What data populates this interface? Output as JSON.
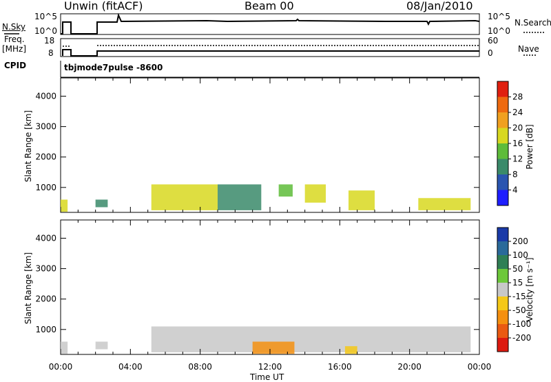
{
  "header": {
    "station": "Unwin (fitACF)",
    "beam": "Beam 00",
    "date": "08/Jan/2010"
  },
  "top_panels": {
    "nsky_label": "N.Sky",
    "nsky_ticks": [
      "10^5",
      "10^0"
    ],
    "nsearch_label": "N.Search",
    "nsearch_ticks": [
      "10^5",
      "10^0"
    ],
    "freq_label": "Freq.",
    "freq_unit": "[MHz]",
    "freq_ticks": [
      "18",
      "8"
    ],
    "nave_label": "Nave",
    "nave_ticks": [
      "60",
      "0"
    ],
    "cpid_label": "CPID",
    "cpid_value": "tbjmode7pulse  -8600"
  },
  "x_axis": {
    "label": "Time UT",
    "ticks": [
      "00:00",
      "04:00",
      "08:00",
      "12:00",
      "16:00",
      "20:00",
      "00:00"
    ]
  },
  "chart_data": [
    {
      "type": "heatmap",
      "title": "",
      "ylabel": "Slant Range [km]",
      "xlabel": "Time UT",
      "xlim_hours": [
        0,
        24
      ],
      "ylim": [
        180,
        4600
      ],
      "y_ticks": [
        1000,
        2000,
        3000,
        4000
      ],
      "colorbar": {
        "label": "Power [dB]",
        "ticks": [
          "4",
          "8",
          "12",
          "16",
          "20",
          "24",
          "28"
        ],
        "colors": [
          "#1e1eff",
          "#2a55b0",
          "#3a8a6a",
          "#5ebc3a",
          "#d8d820",
          "#f0a020",
          "#ee6a10",
          "#e02010"
        ]
      },
      "echo_regions": [
        {
          "t_start": 0.0,
          "t_end": 0.4,
          "range_low": 200,
          "range_high": 600,
          "level": "20"
        },
        {
          "t_start": 2.0,
          "t_end": 2.7,
          "range_low": 350,
          "range_high": 600,
          "level": "12"
        },
        {
          "t_start": 5.2,
          "t_end": 9.0,
          "range_low": 250,
          "range_high": 1100,
          "level": "20"
        },
        {
          "t_start": 9.0,
          "t_end": 11.5,
          "range_low": 250,
          "range_high": 1100,
          "level": "12"
        },
        {
          "t_start": 12.5,
          "t_end": 13.3,
          "range_low": 700,
          "range_high": 1100,
          "level": "16"
        },
        {
          "t_start": 14.0,
          "t_end": 15.2,
          "range_low": 500,
          "range_high": 1100,
          "level": "20"
        },
        {
          "t_start": 16.5,
          "t_end": 18.0,
          "range_low": 250,
          "range_high": 900,
          "level": "20"
        },
        {
          "t_start": 20.5,
          "t_end": 23.5,
          "range_low": 250,
          "range_high": 650,
          "level": "20"
        }
      ]
    },
    {
      "type": "heatmap",
      "title": "",
      "ylabel": "Slant Range [km]",
      "xlabel": "Time UT",
      "xlim_hours": [
        0,
        24
      ],
      "ylim": [
        180,
        4600
      ],
      "y_ticks": [
        1000,
        2000,
        3000,
        4000
      ],
      "colorbar": {
        "label": "Velocity [m s⁻¹]",
        "ticks": [
          "200",
          "100",
          "50",
          "15",
          "-15",
          "-50",
          "-100",
          "-200"
        ],
        "colors": [
          "#1a3aa8",
          "#2a6a9a",
          "#2f7f55",
          "#6dc83a",
          "#c8c8c8",
          "#f5c818",
          "#f59010",
          "#ea5a12",
          "#dd1a10"
        ]
      },
      "echo_regions": [
        {
          "t_start": 0.0,
          "t_end": 0.4,
          "range_low": 200,
          "range_high": 600,
          "level": "ground"
        },
        {
          "t_start": 2.0,
          "t_end": 2.7,
          "range_low": 350,
          "range_high": 600,
          "level": "ground"
        },
        {
          "t_start": 5.2,
          "t_end": 23.5,
          "range_low": 250,
          "range_high": 1100,
          "level": "ground"
        },
        {
          "t_start": 11.0,
          "t_end": 13.4,
          "range_low": 200,
          "range_high": 600,
          "level": "-100"
        },
        {
          "t_start": 16.3,
          "t_end": 17.0,
          "range_low": 200,
          "range_high": 450,
          "level": "-50"
        }
      ]
    }
  ]
}
